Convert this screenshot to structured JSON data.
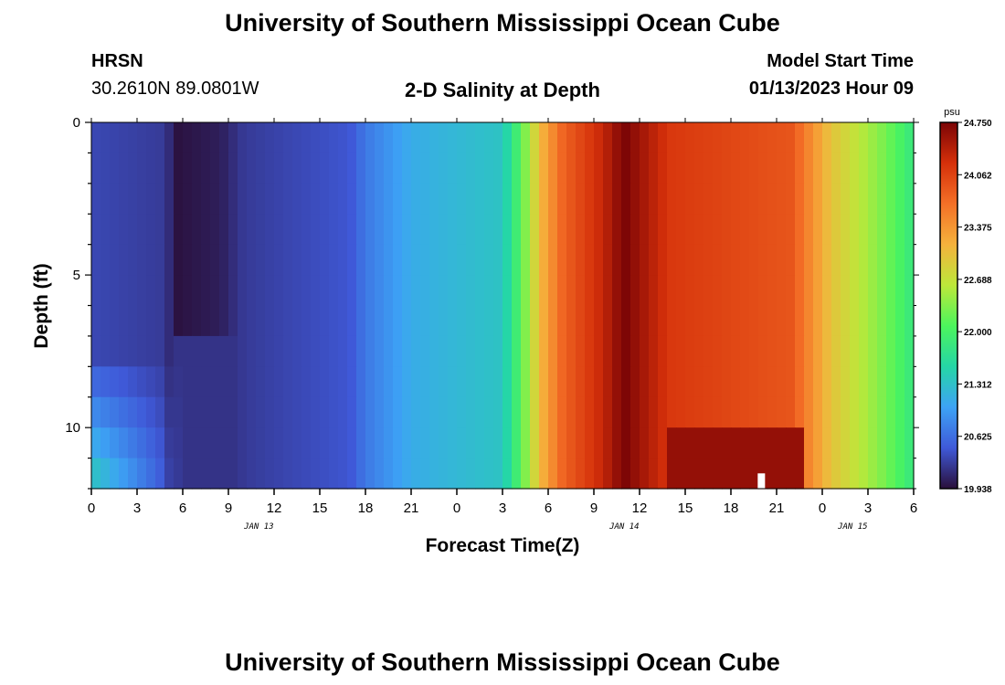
{
  "header": {
    "title": "University of Southern Mississippi Ocean Cube",
    "station": "HRSN",
    "coords": "30.2610N  89.0801W",
    "plot_title": "2-D Salinity at Depth",
    "start_label": "Model Start Time",
    "start_value": "01/13/2023 Hour 09"
  },
  "footer": {
    "title": "University of Southern Mississippi Ocean Cube"
  },
  "chart_data": {
    "type": "heatmap",
    "title": "2-D Salinity at Depth",
    "xlabel": "Forecast Time(Z)",
    "ylabel": "Depth (ft)",
    "x_tick_labels": [
      "0",
      "3",
      "6",
      "9",
      "12",
      "15",
      "18",
      "21",
      "0",
      "3",
      "6",
      "9",
      "12",
      "15",
      "18",
      "21",
      "0",
      "3",
      "6"
    ],
    "x_date_labels": [
      {
        "label": "JAN 13",
        "at_hour": 11
      },
      {
        "label": "JAN 14",
        "at_hour": 35
      },
      {
        "label": "JAN 15",
        "at_hour": 50
      }
    ],
    "x_range_hours": [
      0,
      54
    ],
    "y_range": [
      0,
      12
    ],
    "y_tick_labels": [
      "0",
      "5",
      "10"
    ],
    "y_tick_values": [
      0,
      5,
      10
    ],
    "colorbar": {
      "unit": "psu",
      "min": 19.938,
      "max": 24.75,
      "ticks": [
        "24.750",
        "24.062",
        "23.375",
        "22.688",
        "22.000",
        "21.312",
        "20.625",
        "19.938"
      ],
      "colors": [
        "#2a0f3a",
        "#3f59d8",
        "#3da3f5",
        "#25d6a6",
        "#4cf55c",
        "#bde83a",
        "#f5b23c",
        "#f47027",
        "#d5300a",
        "#7b0406"
      ]
    },
    "depth_layers": [
      0,
      1,
      2,
      3,
      4,
      5,
      6,
      7,
      8,
      9,
      10,
      11,
      12
    ],
    "salinity_surface_by_hour": [
      {
        "hour": 0,
        "value": 20.35
      },
      {
        "hour": 5,
        "value": 20.25
      },
      {
        "hour": 5.3,
        "value": 19.95
      },
      {
        "hour": 8.5,
        "value": 20.05
      },
      {
        "hour": 10,
        "value": 20.25
      },
      {
        "hour": 17,
        "value": 20.45
      },
      {
        "hour": 18,
        "value": 20.7
      },
      {
        "hour": 21,
        "value": 21.1
      },
      {
        "hour": 27,
        "value": 21.35
      },
      {
        "hour": 28.2,
        "value": 22.1
      },
      {
        "hour": 29.5,
        "value": 23.1
      },
      {
        "hour": 31,
        "value": 23.8
      },
      {
        "hour": 33.5,
        "value": 24.3
      },
      {
        "hour": 35,
        "value": 24.75
      },
      {
        "hour": 38,
        "value": 24.15
      },
      {
        "hour": 46,
        "value": 23.9
      },
      {
        "hour": 48.5,
        "value": 23.0
      },
      {
        "hour": 52,
        "value": 22.3
      },
      {
        "hour": 54,
        "value": 21.8
      }
    ],
    "bottom_anomaly": {
      "hour_start": 38,
      "hour_end": 47,
      "depth_start": 10.5,
      "depth_end": 12,
      "value": 24.6
    },
    "gap_marker_hour": 44
  }
}
